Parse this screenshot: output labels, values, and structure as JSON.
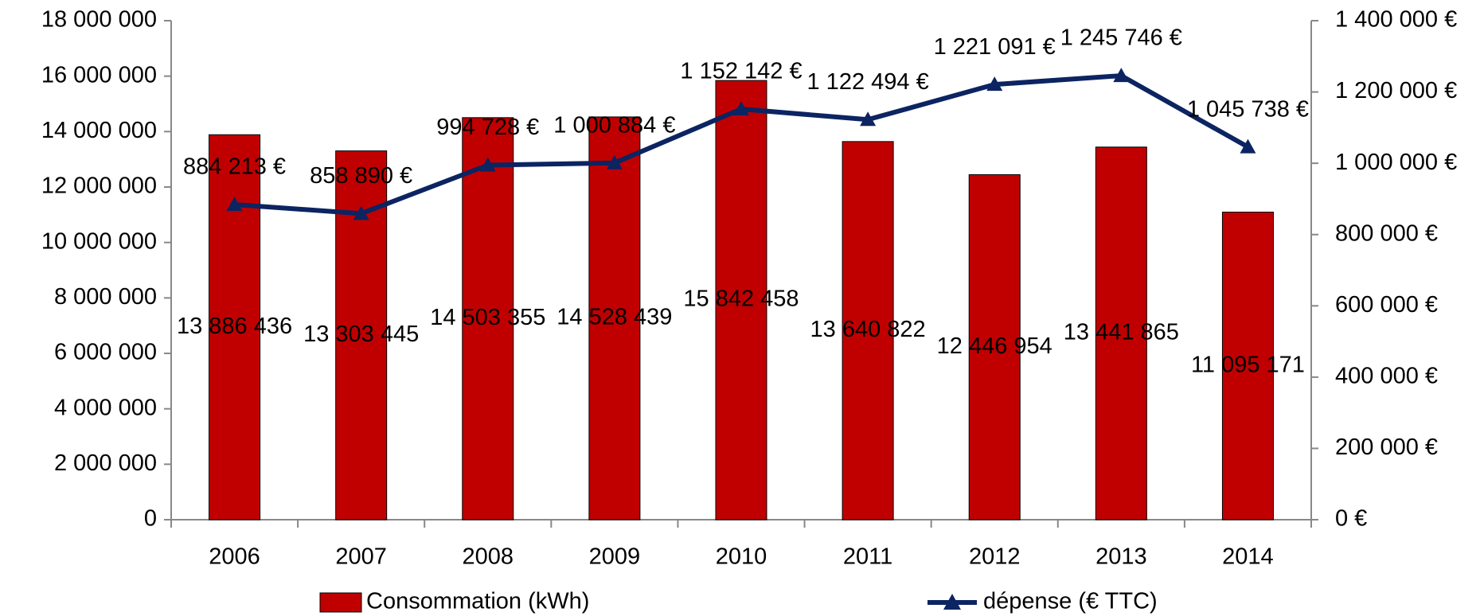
{
  "chart_data": {
    "type": "bar",
    "categories": [
      "2006",
      "2007",
      "2008",
      "2009",
      "2010",
      "2011",
      "2012",
      "2013",
      "2014"
    ],
    "series": [
      {
        "name": "Consommation (kWh)",
        "kind": "bar",
        "color": "#c00000",
        "values": [
          13886436,
          13303445,
          14503355,
          14528439,
          15842458,
          13640822,
          12446954,
          13441865,
          11095171
        ],
        "value_labels": [
          "13 886 436",
          "13 303 445",
          "14 503 355",
          "14 528 439",
          "15 842 458",
          "13 640 822",
          "12 446 954",
          "13 441 865",
          "11 095 171"
        ]
      },
      {
        "name": "dépense (€ TTC)",
        "kind": "line",
        "axis": "y2",
        "color": "#0c2461",
        "values": [
          884213,
          858890,
          994728,
          1000884,
          1152142,
          1122494,
          1221091,
          1245746,
          1045738
        ],
        "value_labels": [
          "884 213 €",
          "858 890 €",
          "994 728 €",
          "1 000 884 €",
          "1 152 142 €",
          "1 122 494 €",
          "1 221 091 €",
          "1 245 746 €",
          "1 045 738 €"
        ]
      }
    ],
    "ylim": [
      0,
      18000000
    ],
    "yticks": [
      0,
      {
        "value": 2000000,
        "label": "2 000 000"
      },
      {
        "value": 4000000,
        "label": "4 000 000"
      },
      {
        "value": 6000000,
        "label": "6 000 000"
      },
      {
        "value": 8000000,
        "label": "8 000 000"
      },
      {
        "value": 10000000,
        "label": "10 000 000"
      },
      {
        "value": 12000000,
        "label": "12 000 000"
      },
      {
        "value": 14000000,
        "label": "14 000 000"
      },
      {
        "value": 16000000,
        "label": "16 000 000"
      },
      {
        "value": 18000000,
        "label": "18 000 000"
      }
    ],
    "y2lim": [
      0,
      1400000
    ],
    "y2ticks": [
      {
        "value": 0,
        "label": "0 €"
      },
      {
        "value": 200000,
        "label": "200 000 €"
      },
      {
        "value": 400000,
        "label": "400 000 €"
      },
      {
        "value": 600000,
        "label": "600 000 €"
      },
      {
        "value": 800000,
        "label": "800 000 €"
      },
      {
        "value": 1000000,
        "label": "1 000 000 €"
      },
      {
        "value": 1200000,
        "label": "1 200 000 €"
      },
      {
        "value": 1400000,
        "label": "1 400 000 €"
      }
    ],
    "legend": "bottom"
  }
}
